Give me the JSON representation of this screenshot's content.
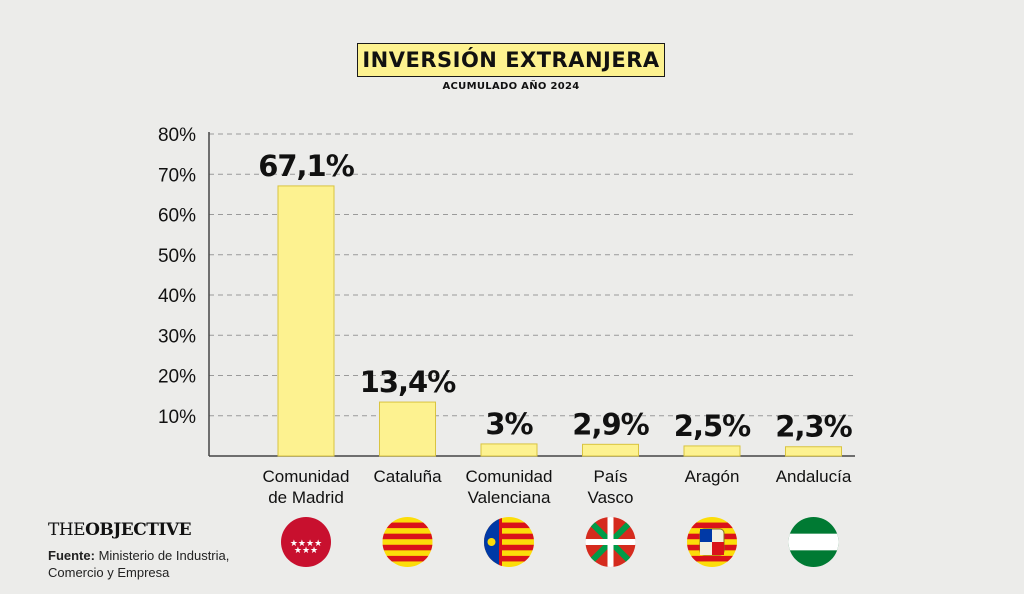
{
  "header": {
    "title": "INVERSIÓN EXTRANJERA",
    "subtitle": "ACUMULADO AÑO 2024"
  },
  "chart_data": {
    "type": "bar",
    "title": "INVERSIÓN EXTRANJERA",
    "subtitle": "ACUMULADO AÑO 2024",
    "categories": [
      [
        "Comunidad",
        "de Madrid"
      ],
      [
        "Cataluña"
      ],
      [
        "Comunidad",
        "Valenciana"
      ],
      [
        "País",
        "Vasco"
      ],
      [
        "Aragón"
      ],
      [
        "Andalucía"
      ]
    ],
    "values": [
      67.1,
      13.4,
      3,
      2.9,
      2.5,
      2.3
    ],
    "data_labels": [
      "67,1%",
      "13,4%",
      "3%",
      "2,9%",
      "2,5%",
      "2,3%"
    ],
    "yticks": [
      "10%",
      "20%",
      "30%",
      "40%",
      "50%",
      "60%",
      "70%",
      "80%"
    ],
    "ylim": [
      0,
      80
    ],
    "grid": true,
    "xlabel": "",
    "ylabel": "",
    "bar_color": "#fdf290",
    "bar_border": "#d9c440",
    "flag_icons": [
      "madrid-flag-icon",
      "catalonia-flag-icon",
      "valencia-flag-icon",
      "basque-flag-icon",
      "aragon-flag-icon",
      "andalusia-flag-icon"
    ]
  },
  "footer": {
    "logo_the": "THE",
    "logo_objective": "OBJECTIVE",
    "source_label": "Fuente:",
    "source_text": "Ministerio de Industria, Comercio y Empresa"
  }
}
